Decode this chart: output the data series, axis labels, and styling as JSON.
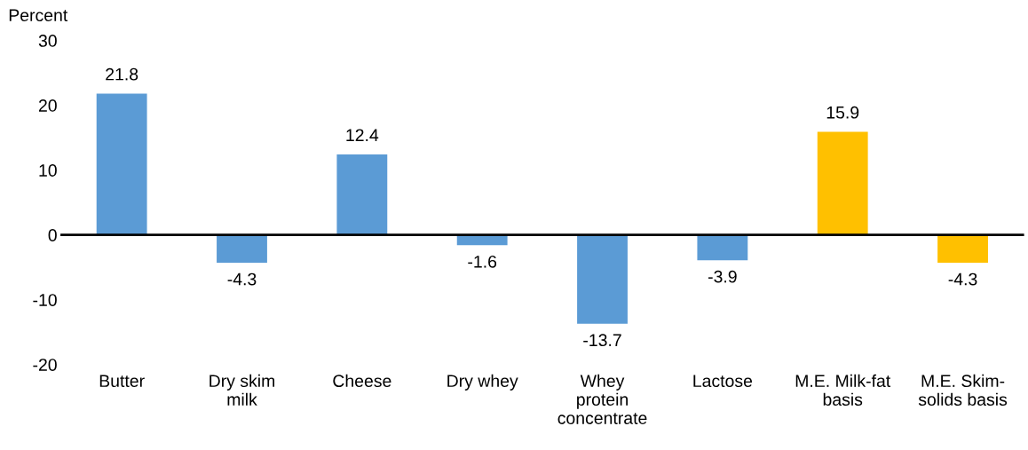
{
  "chart_data": {
    "type": "bar",
    "ylabel": "Percent",
    "categories": [
      "Butter",
      "Dry skim\nmilk",
      "Cheese",
      "Dry whey",
      "Whey\nprotein\nconcentrate",
      "Lactose",
      "M.E. Milk-fat\nbasis",
      "M.E. Skim-\nsolids basis"
    ],
    "values": [
      21.8,
      -4.3,
      12.4,
      -1.6,
      -13.7,
      -3.9,
      15.9,
      -4.3
    ],
    "colors": [
      "#5b9bd5",
      "#5b9bd5",
      "#5b9bd5",
      "#5b9bd5",
      "#5b9bd5",
      "#5b9bd5",
      "#ffc000",
      "#ffc000"
    ],
    "ylim": [
      -20,
      30
    ],
    "yticks": [
      -20,
      -10,
      0,
      10,
      20,
      30
    ],
    "data_labels": true,
    "legend": false
  }
}
